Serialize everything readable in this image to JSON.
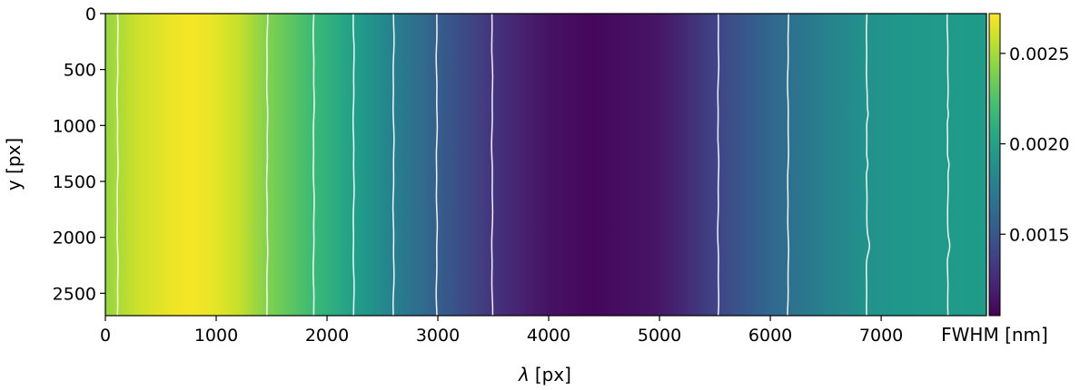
{
  "chart_data": {
    "type": "heatmap",
    "title": "",
    "xlabel_symbol": "λ",
    "xlabel_unit": "[px]",
    "ylabel": "y [px]",
    "xlim": [
      0,
      7950
    ],
    "ylim": [
      2700,
      0
    ],
    "xticks": [
      0,
      1000,
      2000,
      3000,
      4000,
      5000,
      6000,
      7000
    ],
    "xtick_labels": [
      "0",
      "1000",
      "2000",
      "3000",
      "4000",
      "5000",
      "6000",
      "7000"
    ],
    "yticks": [
      0,
      500,
      1000,
      1500,
      2000,
      2500
    ],
    "ytick_labels": [
      "0",
      "500",
      "1000",
      "1500",
      "2000",
      "2500"
    ],
    "colormap": "viridis",
    "colorbar": {
      "label": "FWHM [nm]",
      "vmin": 0.00105,
      "vmax": 0.00272,
      "ticks": [
        0.0015,
        0.002,
        0.0025
      ],
      "tick_labels": [
        "0.0015",
        "0.0020",
        "0.0025"
      ]
    },
    "fwhm_profile": {
      "lambda": [
        0,
        300,
        600,
        800,
        1000,
        1200,
        1460,
        1880,
        2250,
        2600,
        3000,
        3500,
        4000,
        4400,
        5000,
        5530,
        6000,
        6150,
        6850,
        7500,
        7950
      ],
      "fwhm": [
        0.00245,
        0.0026,
        0.00268,
        0.0027,
        0.00266,
        0.00258,
        0.0024,
        0.00218,
        0.00199,
        0.00178,
        0.00155,
        0.0013,
        0.00113,
        0.00108,
        0.00115,
        0.0014,
        0.0016,
        0.00166,
        0.0019,
        0.00195,
        0.00197
      ]
    },
    "contour_levels_lambda": [
      110,
      1460,
      1880,
      2240,
      2600,
      2990,
      3490,
      5530,
      6160,
      6870,
      7600
    ]
  }
}
